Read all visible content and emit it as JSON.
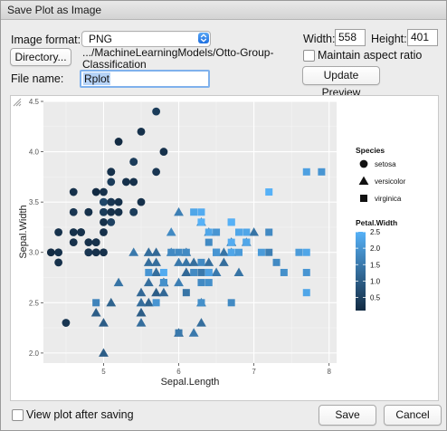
{
  "window": {
    "title": "Save Plot as Image"
  },
  "format": {
    "label": "Image format:",
    "value": "PNG"
  },
  "size": {
    "width_label": "Width:",
    "width_value": "558",
    "height_label": "Height:",
    "height_value": "401"
  },
  "aspect": {
    "label": "Maintain aspect ratio",
    "checked": false
  },
  "directory": {
    "button_label": "Directory...",
    "path_line1": ".../MachineLearningModels/Otto-Group-",
    "path_line2": "Classification"
  },
  "filename": {
    "label": "File name:",
    "value": "Rplot"
  },
  "update_preview_label": "Update Preview",
  "view_after_saving": {
    "label": "View plot after saving",
    "checked": false
  },
  "buttons": {
    "save": "Save",
    "cancel": "Cancel"
  },
  "chart_data": {
    "type": "scatter",
    "xlabel": "Sepal.Length",
    "ylabel": "Sepal.Width",
    "xlim": [
      4.2,
      8.1
    ],
    "ylim": [
      1.9,
      4.5
    ],
    "xticks": [
      5,
      6,
      7,
      8
    ],
    "yticks": [
      2.0,
      2.5,
      3.0,
      3.5,
      4.0,
      4.5
    ],
    "grid": true,
    "legend_shape": {
      "title": "Species",
      "entries": [
        {
          "label": "setosa",
          "shape": "circle"
        },
        {
          "label": "versicolor",
          "shape": "triangle"
        },
        {
          "label": "virginica",
          "shape": "square"
        }
      ]
    },
    "legend_color": {
      "title": "Petal.Width",
      "ticks": [
        "2.5",
        "2.0",
        "1.5",
        "1.0",
        "0.5"
      ],
      "tick_values": [
        2.5,
        2.0,
        1.5,
        1.0,
        0.5
      ],
      "range": [
        0.1,
        2.5
      ],
      "color_low": "#132B43",
      "color_high": "#56B1F7"
    },
    "series": [
      {
        "name": "setosa",
        "shape": "circle",
        "x": [
          5.1,
          4.9,
          4.7,
          4.6,
          5.0,
          5.4,
          4.6,
          5.0,
          4.4,
          4.9,
          5.4,
          4.8,
          4.8,
          4.3,
          5.8,
          5.7,
          5.4,
          5.1,
          5.7,
          5.1,
          5.4,
          5.1,
          4.6,
          5.1,
          4.8,
          5.0,
          5.0,
          5.2,
          5.2,
          4.7,
          4.8,
          5.4,
          5.2,
          5.5,
          4.9,
          5.0,
          5.5,
          4.9,
          4.4,
          5.1,
          5.0,
          4.5,
          4.4,
          5.0,
          5.1,
          4.8,
          5.1,
          4.6,
          5.3,
          5.0
        ],
        "y": [
          3.5,
          3.0,
          3.2,
          3.1,
          3.6,
          3.9,
          3.4,
          3.4,
          2.9,
          3.1,
          3.7,
          3.4,
          3.0,
          3.0,
          4.0,
          4.4,
          3.9,
          3.5,
          3.8,
          3.8,
          3.4,
          3.7,
          3.6,
          3.3,
          3.4,
          3.0,
          3.4,
          3.5,
          3.4,
          3.2,
          3.1,
          3.4,
          4.1,
          4.2,
          3.1,
          3.2,
          3.5,
          3.6,
          3.0,
          3.4,
          3.5,
          2.3,
          3.2,
          3.5,
          3.8,
          3.0,
          3.8,
          3.2,
          3.7,
          3.3
        ],
        "petal_width": [
          0.2,
          0.2,
          0.2,
          0.2,
          0.2,
          0.4,
          0.3,
          0.2,
          0.2,
          0.1,
          0.2,
          0.2,
          0.1,
          0.1,
          0.2,
          0.4,
          0.4,
          0.3,
          0.3,
          0.3,
          0.2,
          0.4,
          0.2,
          0.5,
          0.2,
          0.2,
          0.4,
          0.2,
          0.2,
          0.2,
          0.2,
          0.4,
          0.1,
          0.2,
          0.2,
          0.2,
          0.2,
          0.1,
          0.2,
          0.2,
          0.3,
          0.3,
          0.2,
          0.6,
          0.4,
          0.3,
          0.2,
          0.2,
          0.2,
          0.2
        ]
      },
      {
        "name": "versicolor",
        "shape": "triangle",
        "x": [
          7.0,
          6.4,
          6.9,
          5.5,
          6.5,
          5.7,
          6.3,
          4.9,
          6.6,
          5.2,
          5.0,
          5.9,
          6.0,
          6.1,
          5.6,
          6.7,
          5.6,
          5.8,
          6.2,
          5.6,
          5.9,
          6.1,
          6.3,
          6.1,
          6.4,
          6.6,
          6.8,
          6.7,
          6.0,
          5.7,
          5.5,
          5.5,
          5.8,
          6.0,
          5.4,
          6.0,
          6.7,
          6.3,
          5.6,
          5.5,
          5.5,
          6.1,
          5.8,
          5.0,
          5.6,
          5.7,
          5.7,
          6.2,
          5.1,
          5.7
        ],
        "y": [
          3.2,
          3.2,
          3.1,
          2.3,
          2.8,
          2.8,
          3.3,
          2.4,
          2.9,
          2.7,
          2.0,
          3.0,
          2.2,
          2.9,
          2.9,
          3.1,
          3.0,
          2.7,
          2.2,
          2.5,
          3.2,
          2.8,
          2.5,
          2.8,
          2.9,
          3.0,
          2.8,
          3.0,
          2.9,
          2.6,
          2.4,
          2.4,
          2.7,
          2.7,
          3.0,
          3.4,
          3.1,
          2.3,
          3.0,
          2.5,
          2.6,
          3.0,
          2.6,
          2.3,
          2.7,
          3.0,
          2.9,
          2.9,
          2.5,
          2.8
        ],
        "petal_width": [
          1.4,
          1.5,
          1.5,
          1.3,
          1.5,
          1.3,
          1.6,
          1.0,
          1.3,
          1.4,
          1.0,
          1.5,
          1.0,
          1.4,
          1.3,
          1.4,
          1.5,
          1.0,
          1.5,
          1.1,
          1.8,
          1.3,
          1.5,
          1.2,
          1.3,
          1.4,
          1.4,
          1.7,
          1.5,
          1.0,
          1.1,
          1.0,
          1.2,
          1.6,
          1.5,
          1.6,
          1.5,
          1.3,
          1.3,
          1.3,
          1.2,
          1.4,
          1.2,
          1.0,
          1.3,
          1.2,
          1.3,
          1.3,
          1.1,
          1.3
        ]
      },
      {
        "name": "virginica",
        "shape": "square",
        "x": [
          6.3,
          5.8,
          7.1,
          6.3,
          6.5,
          7.6,
          4.9,
          7.3,
          6.7,
          7.2,
          6.5,
          6.4,
          6.8,
          5.7,
          5.8,
          6.4,
          6.5,
          7.7,
          7.7,
          6.0,
          6.9,
          5.6,
          7.7,
          6.3,
          6.7,
          7.2,
          6.2,
          6.1,
          6.4,
          7.2,
          7.4,
          7.9,
          6.4,
          6.3,
          6.1,
          7.7,
          6.3,
          6.4,
          6.0,
          6.9,
          6.7,
          6.9,
          5.8,
          6.8,
          6.7,
          6.7,
          6.3,
          6.5,
          6.2,
          5.9
        ],
        "y": [
          3.3,
          2.7,
          3.0,
          2.9,
          3.0,
          3.0,
          2.5,
          2.9,
          2.5,
          3.6,
          3.2,
          2.7,
          3.0,
          2.5,
          2.8,
          3.2,
          3.0,
          3.8,
          2.6,
          2.2,
          3.2,
          2.8,
          2.8,
          2.7,
          3.3,
          3.2,
          2.8,
          3.0,
          2.8,
          3.0,
          2.8,
          3.8,
          2.8,
          2.8,
          2.6,
          3.0,
          3.4,
          3.1,
          3.0,
          3.1,
          3.1,
          3.1,
          2.7,
          3.2,
          3.3,
          3.0,
          2.5,
          3.0,
          3.4,
          3.0
        ],
        "petal_width": [
          2.5,
          1.9,
          2.1,
          1.8,
          2.2,
          2.1,
          1.7,
          1.8,
          1.8,
          2.5,
          2.0,
          1.9,
          2.1,
          2.0,
          2.4,
          2.3,
          1.8,
          2.2,
          2.3,
          1.5,
          2.3,
          2.0,
          2.0,
          1.8,
          2.1,
          1.8,
          1.8,
          1.8,
          2.1,
          1.6,
          1.9,
          2.0,
          2.2,
          1.5,
          1.4,
          2.3,
          2.4,
          1.8,
          1.8,
          2.1,
          2.4,
          2.3,
          1.9,
          2.3,
          2.5,
          2.3,
          1.9,
          2.0,
          2.3,
          1.8
        ]
      }
    ]
  }
}
